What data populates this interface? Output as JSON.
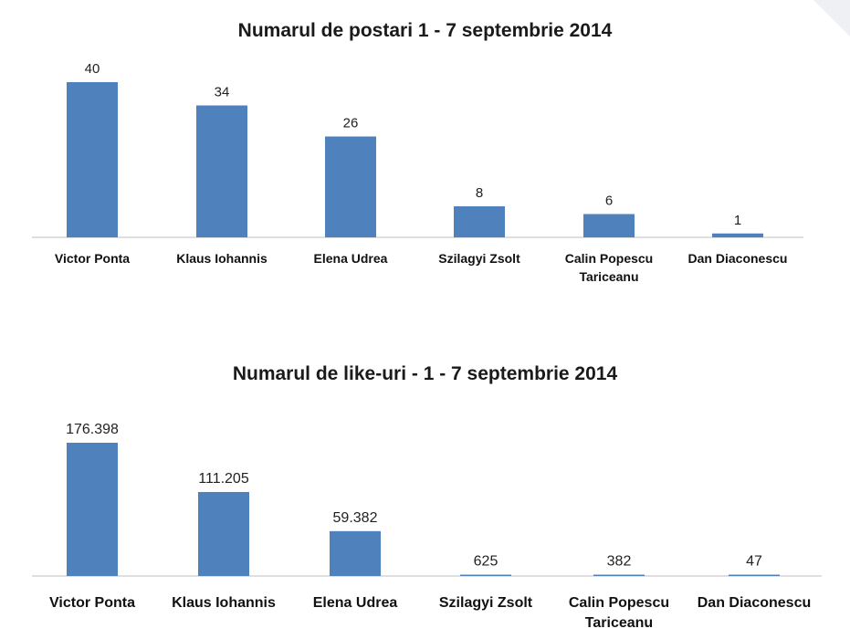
{
  "chart_data": [
    {
      "type": "bar",
      "title": "Numarul de postari 1 - 7 septembrie 2014",
      "categories": [
        [
          "Victor Ponta"
        ],
        [
          "Klaus Iohannis"
        ],
        [
          "Elena Udrea"
        ],
        [
          "Szilagyi Zsolt"
        ],
        [
          "Calin Popescu",
          "Tariceanu"
        ],
        [
          "Dan Diaconescu"
        ]
      ],
      "values": [
        40,
        34,
        26,
        8,
        6,
        1
      ],
      "value_labels": [
        "40",
        "34",
        "26",
        "8",
        "6",
        "1"
      ],
      "ylim": [
        0,
        40
      ],
      "grid": false,
      "color": "#4f81bd"
    },
    {
      "type": "bar",
      "title": "Numarul de like-uri - 1 - 7 septembrie 2014",
      "categories": [
        [
          "Victor Ponta"
        ],
        [
          "Klaus Iohannis"
        ],
        [
          "Elena Udrea"
        ],
        [
          "Szilagyi Zsolt"
        ],
        [
          "Calin Popescu",
          "Tariceanu"
        ],
        [
          "Dan Diaconescu"
        ]
      ],
      "values": [
        176398,
        111205,
        59382,
        625,
        382,
        47
      ],
      "value_labels": [
        "176.398",
        "111.205",
        "59.382",
        "625",
        "382",
        "47"
      ],
      "ylim": [
        0,
        176398
      ],
      "grid": false,
      "color": "#4f81bd"
    }
  ]
}
